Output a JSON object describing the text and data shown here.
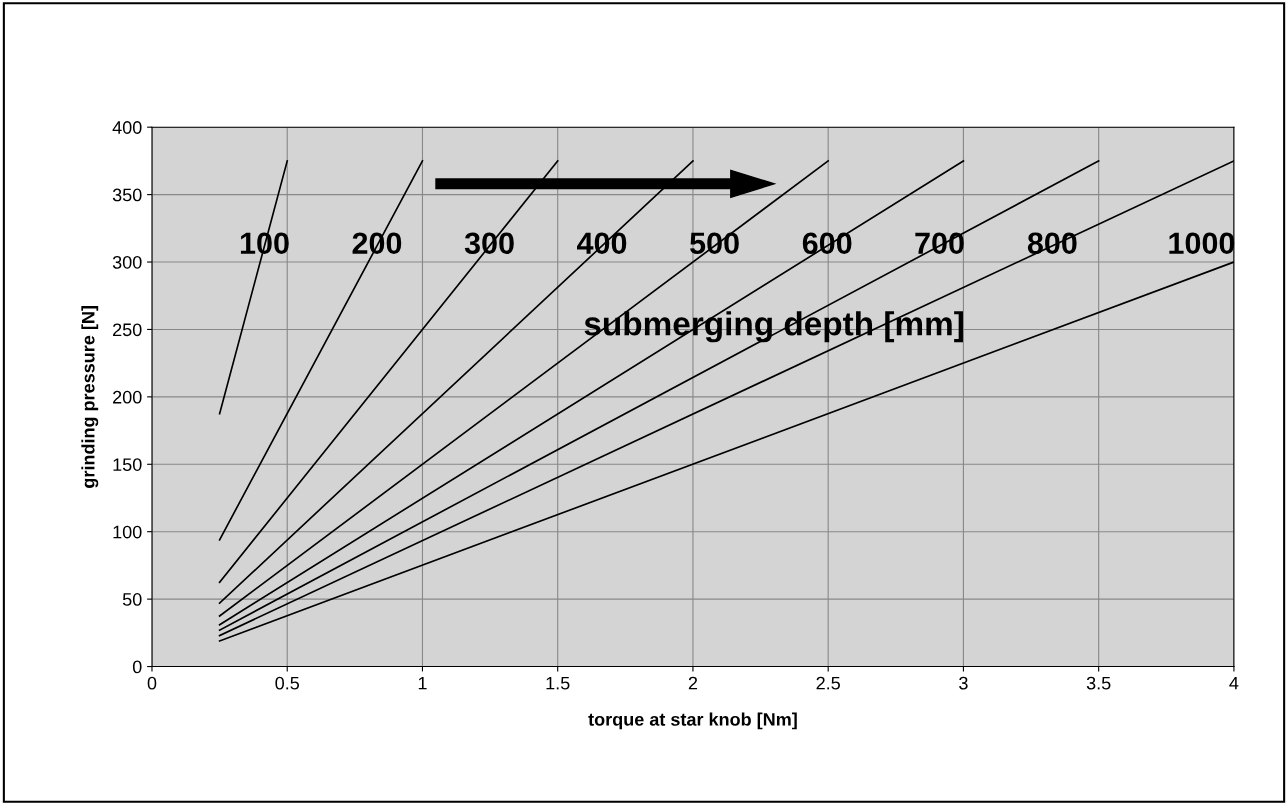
{
  "chart_data": {
    "type": "line",
    "xlabel": "torque at star knob [Nm]",
    "ylabel": "grinding pressure [N]",
    "xlim": [
      0,
      4
    ],
    "ylim": [
      0,
      400
    ],
    "xticks": [
      0,
      0.5,
      1,
      1.5,
      2,
      2.5,
      3,
      3.5,
      4
    ],
    "yticks": [
      0,
      50,
      100,
      150,
      200,
      250,
      300,
      350,
      400
    ],
    "grid": true,
    "legend": false,
    "marker": "none",
    "line_style": "solid",
    "annotations": [
      "submerging depth [mm]"
    ],
    "series": [
      {
        "name": "100",
        "color": "#000000",
        "x": [
          0.25,
          0.5
        ],
        "values": [
          187.5,
          375
        ]
      },
      {
        "name": "200",
        "color": "#000000",
        "x": [
          0.25,
          1
        ],
        "values": [
          94,
          375
        ]
      },
      {
        "name": "300",
        "color": "#000000",
        "x": [
          0.25,
          1.5
        ],
        "values": [
          62.5,
          375
        ]
      },
      {
        "name": "400",
        "color": "#000000",
        "x": [
          0.25,
          2
        ],
        "values": [
          47,
          375
        ]
      },
      {
        "name": "500",
        "color": "#000000",
        "x": [
          0.25,
          2.5
        ],
        "values": [
          37.5,
          375
        ]
      },
      {
        "name": "600",
        "color": "#000000",
        "x": [
          0.25,
          3
        ],
        "values": [
          31,
          375
        ]
      },
      {
        "name": "700",
        "color": "#000000",
        "x": [
          0.25,
          3.5
        ],
        "values": [
          27,
          375
        ]
      },
      {
        "name": "800",
        "color": "#000000",
        "x": [
          0.25,
          4
        ],
        "values": [
          23,
          375
        ]
      },
      {
        "name": "1000",
        "color": "#000000",
        "x": [
          0.25,
          4
        ],
        "values": [
          19,
          300
        ]
      }
    ]
  }
}
